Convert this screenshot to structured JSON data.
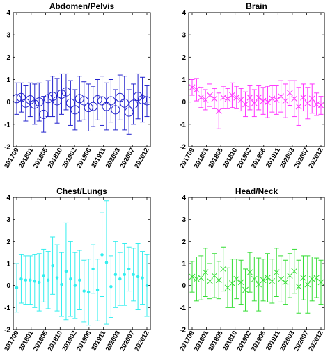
{
  "chart_data": [
    {
      "type": "errorbar",
      "title": "Abdomen/Pelvis",
      "color": "#2222cc",
      "marker": "circle",
      "ylim": [
        -2,
        4
      ],
      "yticks": [
        "-2",
        "-1",
        "0",
        "1",
        "2",
        "3",
        "4"
      ],
      "xtick_labels": [
        "201709",
        "201801",
        "201805",
        "201810",
        "201902",
        "201906",
        "201911",
        "202003",
        "202007",
        "202012"
      ],
      "points": [
        {
          "y": 0.15,
          "err": 0.7
        },
        {
          "y": 0.2,
          "err": 0.65
        },
        {
          "y": -0.05,
          "err": 0.8
        },
        {
          "y": 0.1,
          "err": 0.75
        },
        {
          "y": -0.1,
          "err": 0.9
        },
        {
          "y": 0.0,
          "err": 0.85
        },
        {
          "y": -0.55,
          "err": 0.8
        },
        {
          "y": 0.15,
          "err": 0.8
        },
        {
          "y": 0.25,
          "err": 0.9
        },
        {
          "y": 0.05,
          "err": 1.0
        },
        {
          "y": 0.35,
          "err": 0.9
        },
        {
          "y": 0.45,
          "err": 0.8
        },
        {
          "y": -0.05,
          "err": 1.0
        },
        {
          "y": -0.35,
          "err": 0.9
        },
        {
          "y": 0.15,
          "err": 1.0
        },
        {
          "y": 0.05,
          "err": 0.85
        },
        {
          "y": -0.25,
          "err": 1.05
        },
        {
          "y": -0.2,
          "err": 0.9
        },
        {
          "y": 0.1,
          "err": 0.9
        },
        {
          "y": 0.05,
          "err": 1.1
        },
        {
          "y": -0.2,
          "err": 1.05
        },
        {
          "y": 0.05,
          "err": 0.95
        },
        {
          "y": -0.35,
          "err": 0.9
        },
        {
          "y": 0.2,
          "err": 1.0
        },
        {
          "y": -0.05,
          "err": 1.2
        },
        {
          "y": -0.45,
          "err": 1.0
        },
        {
          "y": -0.1,
          "err": 0.9
        },
        {
          "y": 0.25,
          "err": 1.0
        },
        {
          "y": 0.1,
          "err": 1.0
        },
        {
          "y": 0.05,
          "err": 0.7
        }
      ]
    },
    {
      "type": "errorbar",
      "title": "Brain",
      "color": "#ff33ff",
      "marker": "x",
      "ylim": [
        -2,
        4
      ],
      "yticks": [
        "-2",
        "-1",
        "0",
        "1",
        "2",
        "3",
        "4"
      ],
      "xtick_labels": [
        "201709",
        "201801",
        "201805",
        "201810",
        "201902",
        "201906",
        "201911",
        "202003",
        "202007",
        "202012"
      ],
      "points": [
        {
          "y": 0.65,
          "err": 0.35
        },
        {
          "y": 0.55,
          "err": 0.5
        },
        {
          "y": 0.2,
          "err": 0.45
        },
        {
          "y": 0.1,
          "err": 0.45
        },
        {
          "y": 0.3,
          "err": 0.5
        },
        {
          "y": 0.15,
          "err": 0.45
        },
        {
          "y": -0.4,
          "err": 0.8
        },
        {
          "y": 0.2,
          "err": 0.5
        },
        {
          "y": 0.15,
          "err": 0.45
        },
        {
          "y": 0.3,
          "err": 0.55
        },
        {
          "y": 0.2,
          "err": 0.5
        },
        {
          "y": 0.1,
          "err": 0.5
        },
        {
          "y": -0.1,
          "err": 0.55
        },
        {
          "y": 0.2,
          "err": 0.55
        },
        {
          "y": -0.05,
          "err": 0.6
        },
        {
          "y": 0.2,
          "err": 0.55
        },
        {
          "y": 0.05,
          "err": 0.6
        },
        {
          "y": 0.0,
          "err": 0.7
        },
        {
          "y": 0.15,
          "err": 0.6
        },
        {
          "y": 0.1,
          "err": 0.65
        },
        {
          "y": 0.25,
          "err": 0.7
        },
        {
          "y": 0.05,
          "err": 0.75
        },
        {
          "y": 0.4,
          "err": 0.55
        },
        {
          "y": 0.15,
          "err": 0.8
        },
        {
          "y": -0.2,
          "err": 0.85
        },
        {
          "y": 0.2,
          "err": 0.6
        },
        {
          "y": -0.05,
          "err": 0.7
        },
        {
          "y": 0.15,
          "err": 0.65
        },
        {
          "y": -0.1,
          "err": 0.5
        },
        {
          "y": -0.15,
          "err": 0.4
        }
      ]
    },
    {
      "type": "errorbar",
      "title": "Chest/Lungs",
      "color": "#33eeee",
      "marker": "dot",
      "ylim": [
        -2,
        4
      ],
      "yticks": [
        "-2",
        "-1",
        "0",
        "1",
        "2",
        "3",
        "4"
      ],
      "xtick_labels": [
        "201709",
        "201801",
        "201805",
        "201810",
        "201902",
        "201906",
        "201911",
        "202003",
        "202007",
        "202012"
      ],
      "points": [
        {
          "y": -0.1,
          "err": 1.1
        },
        {
          "y": 0.3,
          "err": 1.1
        },
        {
          "y": 0.25,
          "err": 1.1
        },
        {
          "y": 0.25,
          "err": 1.1
        },
        {
          "y": 0.2,
          "err": 1.2
        },
        {
          "y": 0.15,
          "err": 1.3
        },
        {
          "y": 0.45,
          "err": 1.2
        },
        {
          "y": 0.25,
          "err": 1.3
        },
        {
          "y": 0.9,
          "err": 1.3
        },
        {
          "y": 0.35,
          "err": 1.5
        },
        {
          "y": 0.05,
          "err": 1.45
        },
        {
          "y": 0.65,
          "err": 2.2
        },
        {
          "y": 0.3,
          "err": 1.7
        },
        {
          "y": 0.0,
          "err": 1.5
        },
        {
          "y": 0.25,
          "err": 1.35
        },
        {
          "y": -0.25,
          "err": 1.4
        },
        {
          "y": -0.3,
          "err": 1.5
        },
        {
          "y": 0.75,
          "err": 1.1
        },
        {
          "y": -0.2,
          "err": 1.4
        },
        {
          "y": 1.4,
          "err": 1.9
        },
        {
          "y": 1.05,
          "err": 2.8
        },
        {
          "y": -0.05,
          "err": 1.4
        },
        {
          "y": 0.5,
          "err": 1.5
        },
        {
          "y": 0.3,
          "err": 1.2
        },
        {
          "y": 0.5,
          "err": 1.4
        },
        {
          "y": 0.75,
          "err": 1.0
        },
        {
          "y": 0.5,
          "err": 1.2
        },
        {
          "y": 0.4,
          "err": 1.5
        },
        {
          "y": 0.35,
          "err": 1.2
        },
        {
          "y": 0.0,
          "err": 1.4
        }
      ]
    },
    {
      "type": "errorbar",
      "title": "Head/Neck",
      "color": "#33dd33",
      "marker": "x",
      "ylim": [
        -2,
        4
      ],
      "yticks": [
        "-2",
        "-1",
        "0",
        "1",
        "2",
        "3",
        "4"
      ],
      "xtick_labels": [
        "201709",
        "201801",
        "201805",
        "201810",
        "201902",
        "201906",
        "201911",
        "202003",
        "202007",
        "202012"
      ],
      "points": [
        {
          "y": 0.4,
          "err": 0.7
        },
        {
          "y": 0.3,
          "err": 1.0
        },
        {
          "y": 0.35,
          "err": 1.0
        },
        {
          "y": 0.6,
          "err": 1.1
        },
        {
          "y": 0.2,
          "err": 0.8
        },
        {
          "y": 0.45,
          "err": 1.0
        },
        {
          "y": 0.25,
          "err": 0.85
        },
        {
          "y": 0.75,
          "err": 1.0
        },
        {
          "y": -0.1,
          "err": 0.9
        },
        {
          "y": 0.1,
          "err": 1.1
        },
        {
          "y": 0.3,
          "err": 0.9
        },
        {
          "y": 0.15,
          "err": 1.0
        },
        {
          "y": -0.2,
          "err": 0.95
        },
        {
          "y": 0.6,
          "err": 0.9
        },
        {
          "y": 0.3,
          "err": 1.0
        },
        {
          "y": 0.05,
          "err": 1.2
        },
        {
          "y": 0.25,
          "err": 0.95
        },
        {
          "y": 0.35,
          "err": 1.1
        },
        {
          "y": 0.2,
          "err": 1.0
        },
        {
          "y": 0.6,
          "err": 1.1
        },
        {
          "y": 0.3,
          "err": 1.05
        },
        {
          "y": 0.15,
          "err": 1.0
        },
        {
          "y": 0.45,
          "err": 1.0
        },
        {
          "y": 0.65,
          "err": 1.0
        },
        {
          "y": -0.05,
          "err": 1.2
        },
        {
          "y": 0.35,
          "err": 1.0
        },
        {
          "y": 0.05,
          "err": 1.3
        },
        {
          "y": 0.3,
          "err": 1.0
        },
        {
          "y": 0.35,
          "err": 0.9
        },
        {
          "y": 0.15,
          "err": 1.0
        }
      ]
    }
  ]
}
